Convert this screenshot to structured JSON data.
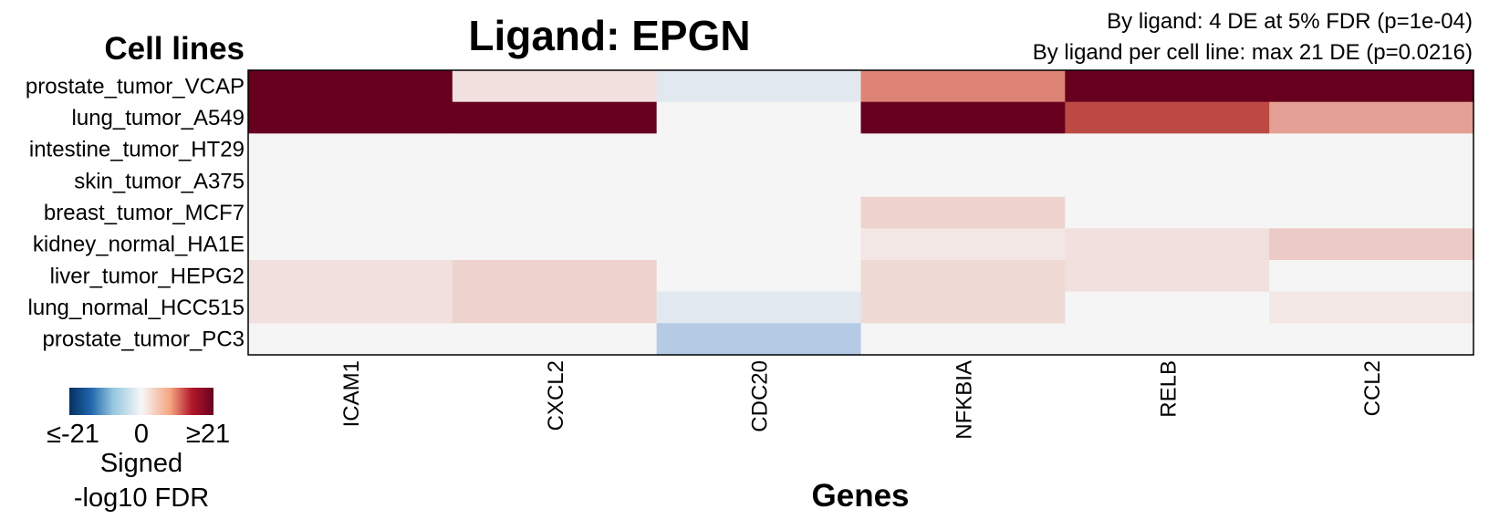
{
  "chart_data": {
    "type": "heatmap",
    "title": "Ligand: EPGN",
    "subtitle_lines": [
      "By ligand: 4 DE at 5% FDR (p=1e-04)",
      "By ligand per cell line: max 21 DE (p=0.0216)"
    ],
    "ylabel": "Cell lines",
    "xlabel": "Genes",
    "rows": [
      "prostate_tumor_VCAP",
      "lung_tumor_A549",
      "intestine_tumor_HT29",
      "skin_tumor_A375",
      "breast_tumor_MCF7",
      "kidney_normal_HA1E",
      "liver_tumor_HEPG2",
      "lung_normal_HCC515",
      "prostate_tumor_PC3"
    ],
    "columns": [
      "ICAM1",
      "CXCL2",
      "CDC20",
      "NFKBIA",
      "RELB",
      "CCL2"
    ],
    "values": [
      [
        21,
        1.5,
        -1.5,
        8,
        21,
        21
      ],
      [
        21,
        21,
        0,
        21,
        13,
        6
      ],
      [
        0,
        0,
        0,
        0,
        0,
        0
      ],
      [
        0,
        0,
        0,
        0,
        0,
        0
      ],
      [
        0,
        0,
        0,
        2.5,
        0,
        0
      ],
      [
        0,
        0,
        0,
        1,
        1.5,
        3
      ],
      [
        1.5,
        2.5,
        0,
        2,
        1.5,
        0
      ],
      [
        1.5,
        2.5,
        -1.5,
        2,
        0,
        1
      ],
      [
        0,
        0,
        -5,
        0,
        0,
        0
      ]
    ],
    "color_scale": {
      "min": -21,
      "max": 21,
      "low_color": "#053061",
      "mid_color": "#f5f5f5",
      "high_color": "#67001f",
      "tick_labels": [
        "≤-21",
        "0",
        "≥21"
      ],
      "title_lines": [
        "Signed",
        "-log10 FDR"
      ]
    }
  }
}
